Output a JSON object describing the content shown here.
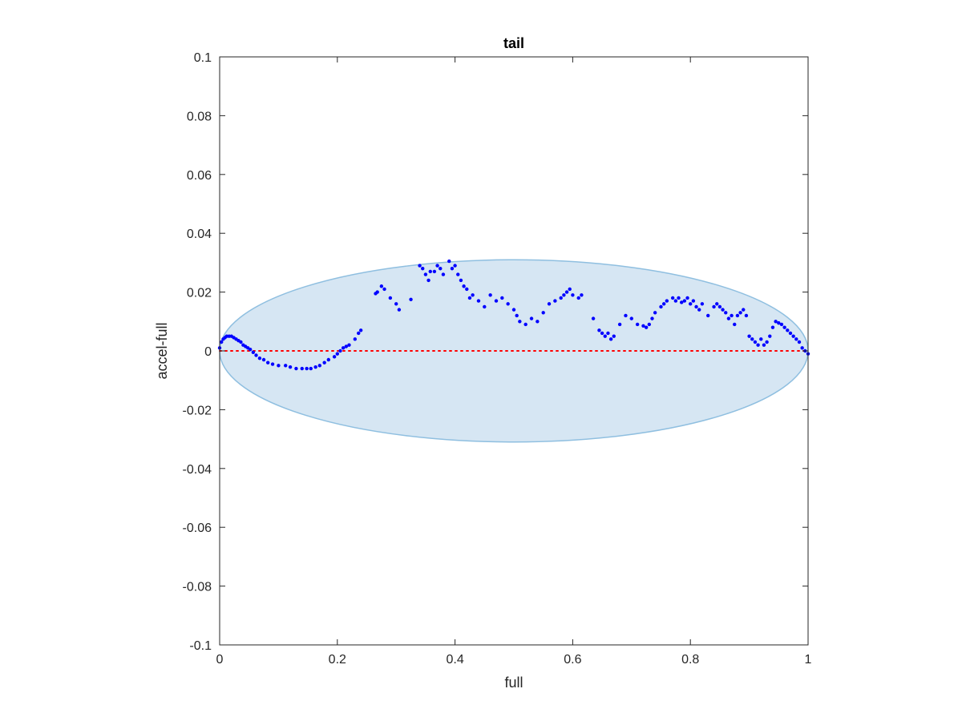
{
  "chart_data": {
    "type": "scatter",
    "title": "tail",
    "xlabel": "full",
    "ylabel": "accel-full",
    "xlim": [
      0,
      1
    ],
    "ylim": [
      -0.1,
      0.1
    ],
    "xticks": [
      0,
      0.2,
      0.4,
      0.6,
      0.8,
      1
    ],
    "xtick_labels": [
      "0",
      "0.2",
      "0.4",
      "0.6",
      "0.8",
      "1"
    ],
    "yticks": [
      -0.1,
      -0.08,
      -0.06,
      -0.04,
      -0.02,
      0,
      0.02,
      0.04,
      0.06,
      0.08,
      0.1
    ],
    "ytick_labels": [
      "-0.1",
      "-0.08",
      "-0.06",
      "-0.04",
      "-0.02",
      "0",
      "0.02",
      "0.04",
      "0.06",
      "0.08",
      "0.1"
    ],
    "grid": false,
    "ellipse": {
      "center_x": 0.5,
      "center_y": 0,
      "radius_x": 0.5,
      "radius_y": 0.031,
      "fill": "#d6e6f3",
      "stroke": "#8fbfe0"
    },
    "reference_line": {
      "y": 0,
      "color": "#ff0000",
      "style": "dotted"
    },
    "series": [
      {
        "color": "#0000ff",
        "x": [
          0.0,
          0.003,
          0.006,
          0.009,
          0.012,
          0.016,
          0.02,
          0.024,
          0.028,
          0.032,
          0.036,
          0.04,
          0.044,
          0.048,
          0.052,
          0.057,
          0.062,
          0.068,
          0.075,
          0.082,
          0.09,
          0.1,
          0.112,
          0.12,
          0.13,
          0.14,
          0.148,
          0.155,
          0.163,
          0.17,
          0.178,
          0.185,
          0.195,
          0.2,
          0.205,
          0.21,
          0.215,
          0.22,
          0.23,
          0.236,
          0.24,
          0.265,
          0.268,
          0.275,
          0.28,
          0.29,
          0.3,
          0.305,
          0.325,
          0.34,
          0.345,
          0.35,
          0.355,
          0.358,
          0.365,
          0.37,
          0.375,
          0.38,
          0.39,
          0.395,
          0.4,
          0.405,
          0.41,
          0.415,
          0.42,
          0.425,
          0.43,
          0.44,
          0.45,
          0.46,
          0.47,
          0.48,
          0.49,
          0.5,
          0.505,
          0.51,
          0.52,
          0.53,
          0.54,
          0.55,
          0.56,
          0.57,
          0.58,
          0.585,
          0.59,
          0.595,
          0.6,
          0.61,
          0.615,
          0.635,
          0.645,
          0.65,
          0.655,
          0.66,
          0.665,
          0.67,
          0.68,
          0.69,
          0.7,
          0.71,
          0.72,
          0.725,
          0.73,
          0.735,
          0.74,
          0.75,
          0.755,
          0.76,
          0.77,
          0.775,
          0.78,
          0.785,
          0.79,
          0.795,
          0.8,
          0.805,
          0.81,
          0.815,
          0.82,
          0.83,
          0.84,
          0.845,
          0.85,
          0.855,
          0.86,
          0.865,
          0.87,
          0.875,
          0.88,
          0.885,
          0.89,
          0.895,
          0.9,
          0.905,
          0.91,
          0.915,
          0.92,
          0.925,
          0.93,
          0.935,
          0.94,
          0.945,
          0.95,
          0.955,
          0.96,
          0.965,
          0.97,
          0.975,
          0.98,
          0.985,
          0.99,
          0.995,
          1.0
        ],
        "y": [
          0.001,
          0.003,
          0.004,
          0.0045,
          0.005,
          0.005,
          0.005,
          0.0045,
          0.004,
          0.0035,
          0.003,
          0.002,
          0.0015,
          0.001,
          0.0005,
          -0.0005,
          -0.0015,
          -0.0025,
          -0.003,
          -0.004,
          -0.0045,
          -0.005,
          -0.005,
          -0.0055,
          -0.006,
          -0.006,
          -0.006,
          -0.006,
          -0.0055,
          -0.005,
          -0.004,
          -0.003,
          -0.002,
          -0.001,
          0.0,
          0.001,
          0.0015,
          0.002,
          0.004,
          0.006,
          0.007,
          0.0195,
          0.02,
          0.022,
          0.021,
          0.018,
          0.016,
          0.014,
          0.0175,
          0.029,
          0.028,
          0.026,
          0.024,
          0.027,
          0.027,
          0.029,
          0.028,
          0.026,
          0.0305,
          0.028,
          0.029,
          0.026,
          0.024,
          0.022,
          0.021,
          0.018,
          0.019,
          0.017,
          0.015,
          0.019,
          0.017,
          0.018,
          0.016,
          0.014,
          0.012,
          0.01,
          0.009,
          0.011,
          0.01,
          0.013,
          0.016,
          0.017,
          0.018,
          0.019,
          0.02,
          0.021,
          0.019,
          0.018,
          0.019,
          0.011,
          0.007,
          0.006,
          0.005,
          0.006,
          0.004,
          0.005,
          0.009,
          0.012,
          0.011,
          0.009,
          0.0085,
          0.008,
          0.009,
          0.011,
          0.013,
          0.015,
          0.016,
          0.017,
          0.018,
          0.017,
          0.018,
          0.0165,
          0.017,
          0.018,
          0.016,
          0.017,
          0.015,
          0.014,
          0.016,
          0.012,
          0.015,
          0.016,
          0.015,
          0.014,
          0.013,
          0.011,
          0.012,
          0.009,
          0.012,
          0.013,
          0.014,
          0.012,
          0.005,
          0.004,
          0.003,
          0.002,
          0.004,
          0.002,
          0.003,
          0.005,
          0.008,
          0.01,
          0.0095,
          0.009,
          0.008,
          0.007,
          0.006,
          0.005,
          0.004,
          0.003,
          0.001,
          0.0,
          -0.001
        ]
      }
    ]
  }
}
